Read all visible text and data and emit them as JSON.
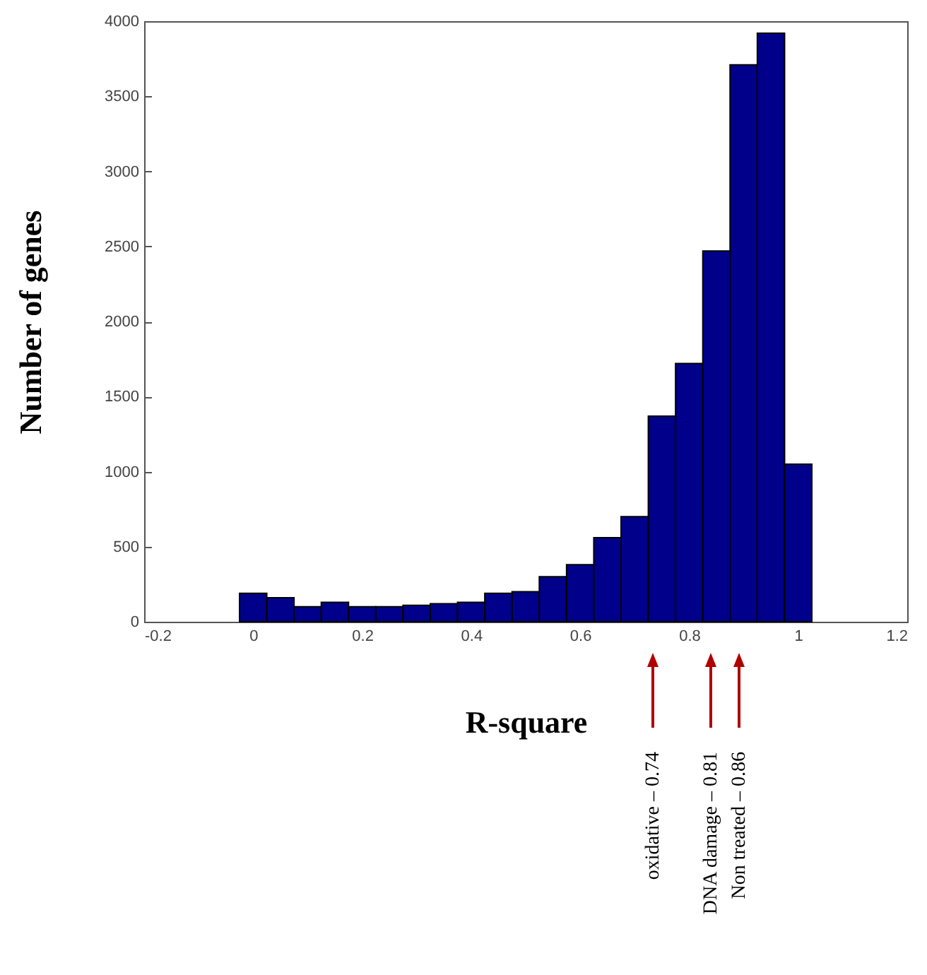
{
  "chart_data": {
    "type": "histogram",
    "xlabel": "R-square",
    "ylabel": "Number of genes",
    "bins": [
      -0.025,
      0.025,
      0.075,
      0.125,
      0.175,
      0.225,
      0.275,
      0.325,
      0.375,
      0.425,
      0.475,
      0.525,
      0.575,
      0.625,
      0.675,
      0.725,
      0.775,
      0.825,
      0.875,
      0.925,
      0.975,
      1.025
    ],
    "values": [
      190,
      160,
      100,
      130,
      100,
      100,
      110,
      120,
      130,
      190,
      200,
      300,
      380,
      560,
      700,
      1370,
      1720,
      2470,
      3710,
      3920,
      1050
    ],
    "color": "#00008b",
    "xlim": [
      -0.2,
      1.2
    ],
    "xticks": [
      -0.2,
      0,
      0.2,
      0.4,
      0.6,
      0.8,
      1,
      1.2
    ],
    "ylim": [
      0,
      4000
    ],
    "yticks": [
      0,
      500,
      1000,
      1500,
      2000,
      2500,
      3000,
      3500,
      4000
    ],
    "grid": false,
    "annotations": [
      "oxidative – 0.74",
      "DNA damage – 0.81",
      "Non treated – 0.86"
    ]
  }
}
